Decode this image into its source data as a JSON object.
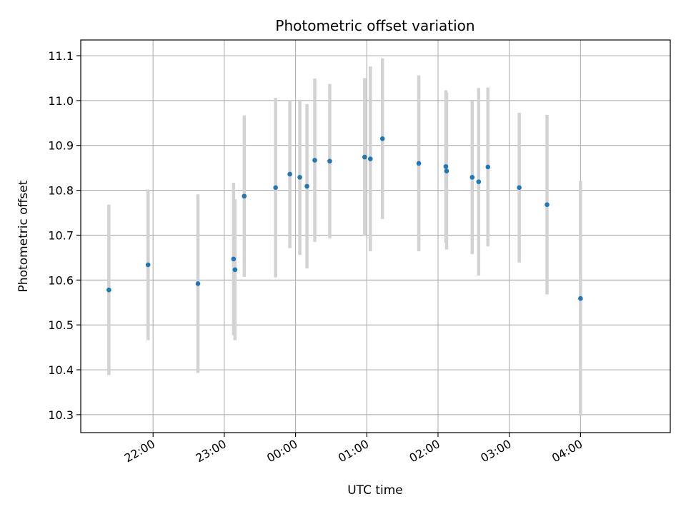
{
  "chart_data": {
    "type": "scatter",
    "title": "Photometric offset variation",
    "xlabel": "UTC time",
    "ylabel": "Photometric offset",
    "x_unit": "hours",
    "x_ticks": [
      {
        "value": 22,
        "label": "22:00"
      },
      {
        "value": 23,
        "label": "23:00"
      },
      {
        "value": 24,
        "label": "00:00"
      },
      {
        "value": 25,
        "label": "01:00"
      },
      {
        "value": 26,
        "label": "02:00"
      },
      {
        "value": 27,
        "label": "03:00"
      },
      {
        "value": 28,
        "label": "04:00"
      }
    ],
    "y_ticks": [
      10.3,
      10.4,
      10.5,
      10.6,
      10.7,
      10.8,
      10.9,
      11.0,
      11.1
    ],
    "xlim": [
      20.985,
      29.26
    ],
    "ylim": [
      10.26,
      11.135
    ],
    "grid": true,
    "colors": {
      "points": "#1f77b4",
      "errorbars": "#d3d3d3",
      "grid": "#b0b0b0"
    },
    "series": [
      {
        "points": [
          {
            "x": 21.38,
            "y": 10.578,
            "err": 0.19
          },
          {
            "x": 21.93,
            "y": 10.634,
            "err": 0.168
          },
          {
            "x": 22.63,
            "y": 10.592,
            "err": 0.199
          },
          {
            "x": 23.13,
            "y": 10.647,
            "err": 0.17
          },
          {
            "x": 23.15,
            "y": 10.623,
            "err": 0.157
          },
          {
            "x": 23.28,
            "y": 10.787,
            "err": 0.18
          },
          {
            "x": 23.72,
            "y": 10.806,
            "err": 0.2
          },
          {
            "x": 23.92,
            "y": 10.836,
            "err": 0.165
          },
          {
            "x": 24.06,
            "y": 10.829,
            "err": 0.173
          },
          {
            "x": 24.16,
            "y": 10.809,
            "err": 0.183
          },
          {
            "x": 24.27,
            "y": 10.867,
            "err": 0.182
          },
          {
            "x": 24.48,
            "y": 10.865,
            "err": 0.172
          },
          {
            "x": 24.97,
            "y": 10.874,
            "err": 0.176
          },
          {
            "x": 25.05,
            "y": 10.87,
            "err": 0.206
          },
          {
            "x": 25.22,
            "y": 10.915,
            "err": 0.179
          },
          {
            "x": 25.73,
            "y": 10.86,
            "err": 0.196
          },
          {
            "x": 26.11,
            "y": 10.853,
            "err": 0.17
          },
          {
            "x": 26.12,
            "y": 10.843,
            "err": 0.175
          },
          {
            "x": 26.48,
            "y": 10.829,
            "err": 0.171
          },
          {
            "x": 26.57,
            "y": 10.819,
            "err": 0.209
          },
          {
            "x": 26.7,
            "y": 10.852,
            "err": 0.177
          },
          {
            "x": 27.14,
            "y": 10.806,
            "err": 0.167
          },
          {
            "x": 27.53,
            "y": 10.768,
            "err": 0.2
          },
          {
            "x": 28.0,
            "y": 10.559,
            "err": 0.262
          }
        ]
      }
    ]
  }
}
